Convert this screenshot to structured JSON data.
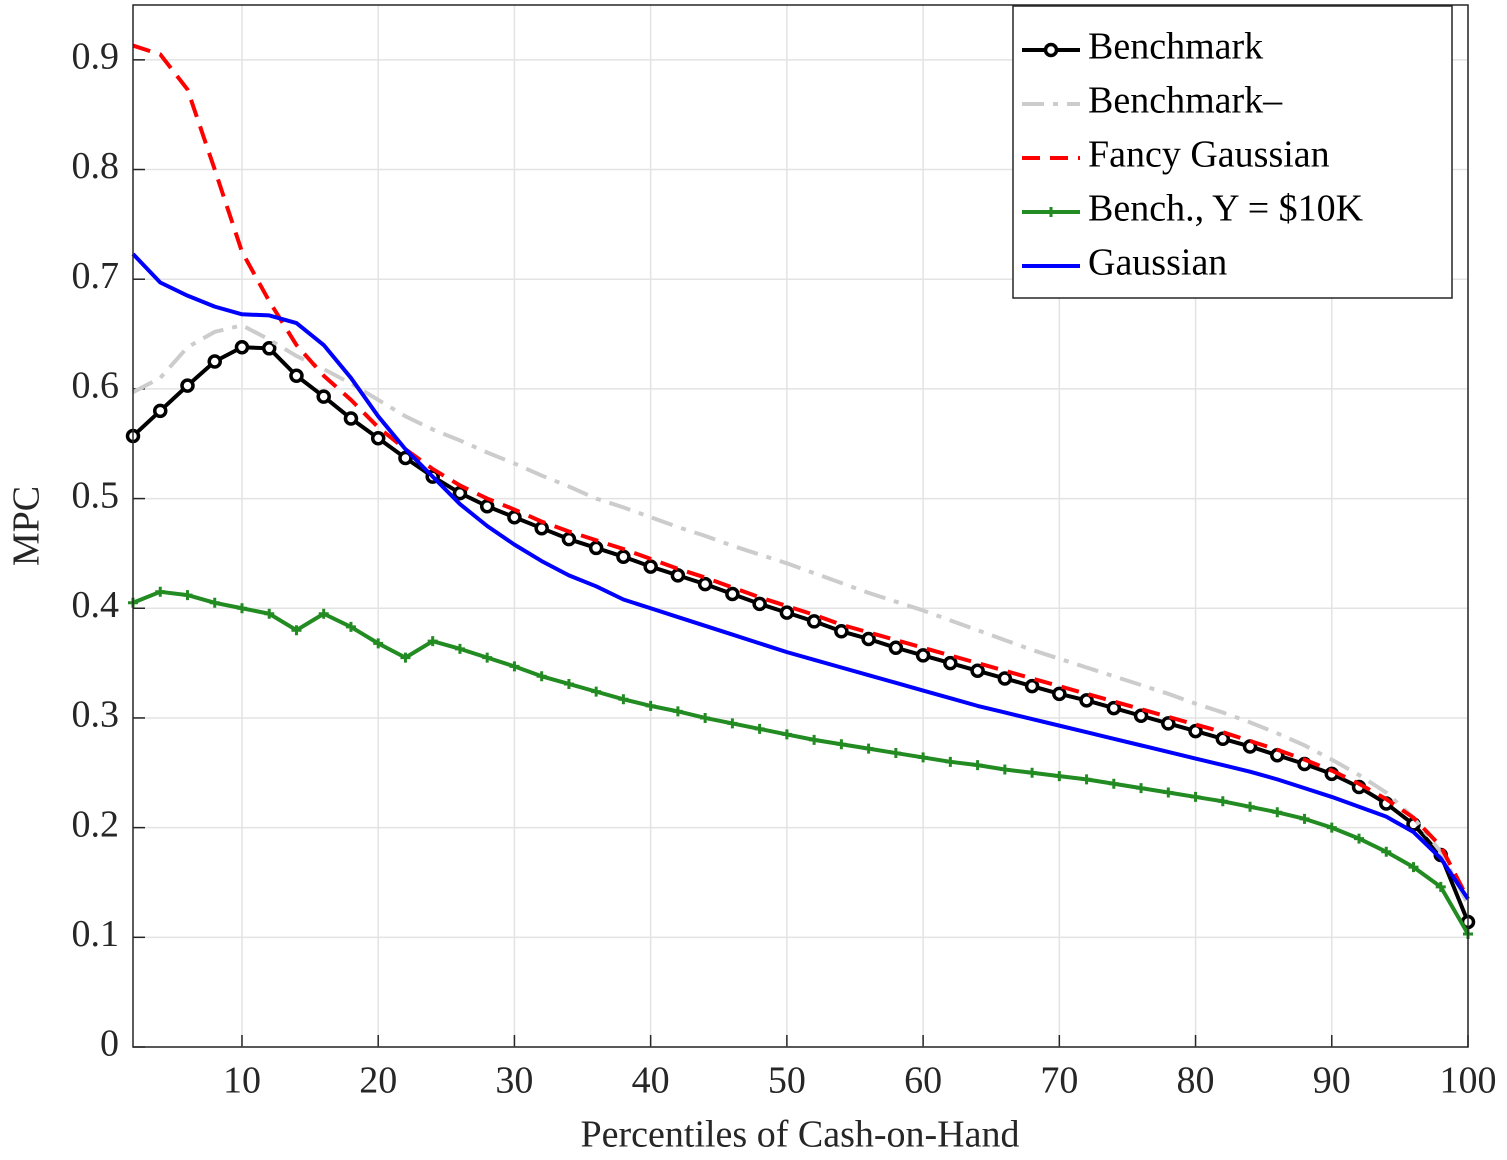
{
  "chart_data": {
    "type": "line",
    "x_label": "Percentiles of Cash-on-Hand",
    "y_label": "MPC",
    "xlim": [
      2,
      100
    ],
    "ylim": [
      0,
      0.95
    ],
    "xticks": [
      10,
      20,
      30,
      40,
      50,
      60,
      70,
      80,
      90,
      100
    ],
    "yticks": [
      0,
      0.1,
      0.2,
      0.3,
      0.4,
      0.5,
      0.6,
      0.7,
      0.8,
      0.9
    ],
    "grid": true,
    "legend": "upper right",
    "x": [
      2,
      4,
      6,
      8,
      10,
      12,
      14,
      16,
      18,
      20,
      22,
      24,
      26,
      28,
      30,
      32,
      34,
      36,
      38,
      40,
      42,
      44,
      46,
      48,
      50,
      52,
      54,
      56,
      58,
      60,
      62,
      64,
      66,
      68,
      70,
      72,
      74,
      76,
      78,
      80,
      82,
      84,
      86,
      88,
      90,
      92,
      94,
      96,
      98,
      100
    ],
    "series": [
      {
        "name": "Benchmark",
        "color": "#000000",
        "dash": "solid",
        "marker": "circle",
        "values": [
          0.557,
          0.58,
          0.603,
          0.625,
          0.638,
          0.637,
          0.612,
          0.593,
          0.573,
          0.555,
          0.537,
          0.52,
          0.505,
          0.493,
          0.483,
          0.473,
          0.463,
          0.455,
          0.447,
          0.438,
          0.43,
          0.422,
          0.413,
          0.404,
          0.396,
          0.388,
          0.379,
          0.372,
          0.364,
          0.357,
          0.35,
          0.343,
          0.336,
          0.329,
          0.322,
          0.316,
          0.309,
          0.302,
          0.295,
          0.288,
          0.281,
          0.274,
          0.266,
          0.258,
          0.249,
          0.237,
          0.222,
          0.203,
          0.175,
          0.114
        ]
      },
      {
        "name": "Benchmark–",
        "color": "#cccccc",
        "dash": "dashdot",
        "marker": "none",
        "values": [
          0.597,
          0.61,
          0.638,
          0.652,
          0.658,
          0.645,
          0.63,
          0.618,
          0.605,
          0.59,
          0.575,
          0.563,
          0.553,
          0.542,
          0.532,
          0.521,
          0.511,
          0.5,
          0.492,
          0.483,
          0.474,
          0.466,
          0.457,
          0.449,
          0.441,
          0.432,
          0.423,
          0.414,
          0.406,
          0.398,
          0.389,
          0.38,
          0.371,
          0.362,
          0.354,
          0.346,
          0.338,
          0.33,
          0.322,
          0.313,
          0.305,
          0.296,
          0.286,
          0.275,
          0.262,
          0.248,
          0.232,
          0.209,
          0.178,
          0.13
        ]
      },
      {
        "name": "Fancy Gaussian",
        "color": "#ff0000",
        "dash": "dashed",
        "marker": "none",
        "values": [
          0.913,
          0.905,
          0.873,
          0.8,
          0.725,
          0.68,
          0.64,
          0.612,
          0.59,
          0.565,
          0.545,
          0.527,
          0.512,
          0.5,
          0.49,
          0.479,
          0.47,
          0.462,
          0.454,
          0.445,
          0.436,
          0.428,
          0.419,
          0.41,
          0.402,
          0.394,
          0.385,
          0.378,
          0.371,
          0.364,
          0.357,
          0.35,
          0.343,
          0.336,
          0.329,
          0.322,
          0.315,
          0.308,
          0.301,
          0.294,
          0.287,
          0.279,
          0.271,
          0.262,
          0.252,
          0.24,
          0.226,
          0.209,
          0.183,
          0.135
        ]
      },
      {
        "name": "Bench., Y = $10K",
        "color": "#228b22",
        "dash": "solid",
        "marker": "plus",
        "values": [
          0.405,
          0.415,
          0.412,
          0.405,
          0.4,
          0.395,
          0.38,
          0.395,
          0.383,
          0.368,
          0.355,
          0.37,
          0.363,
          0.355,
          0.347,
          0.338,
          0.331,
          0.324,
          0.317,
          0.311,
          0.306,
          0.3,
          0.295,
          0.29,
          0.285,
          0.28,
          0.276,
          0.272,
          0.268,
          0.264,
          0.26,
          0.257,
          0.253,
          0.25,
          0.247,
          0.244,
          0.24,
          0.236,
          0.232,
          0.228,
          0.224,
          0.219,
          0.214,
          0.208,
          0.2,
          0.19,
          0.178,
          0.164,
          0.146,
          0.103
        ]
      },
      {
        "name": "Gaussian",
        "color": "#0000ff",
        "dash": "solid",
        "marker": "none",
        "values": [
          0.723,
          0.697,
          0.685,
          0.675,
          0.668,
          0.667,
          0.66,
          0.64,
          0.61,
          0.575,
          0.545,
          0.52,
          0.495,
          0.475,
          0.458,
          0.443,
          0.43,
          0.42,
          0.408,
          0.4,
          0.392,
          0.384,
          0.376,
          0.368,
          0.36,
          0.353,
          0.346,
          0.339,
          0.332,
          0.325,
          0.318,
          0.311,
          0.305,
          0.299,
          0.293,
          0.287,
          0.281,
          0.275,
          0.269,
          0.263,
          0.257,
          0.251,
          0.244,
          0.236,
          0.228,
          0.219,
          0.21,
          0.196,
          0.172,
          0.135
        ]
      }
    ]
  }
}
